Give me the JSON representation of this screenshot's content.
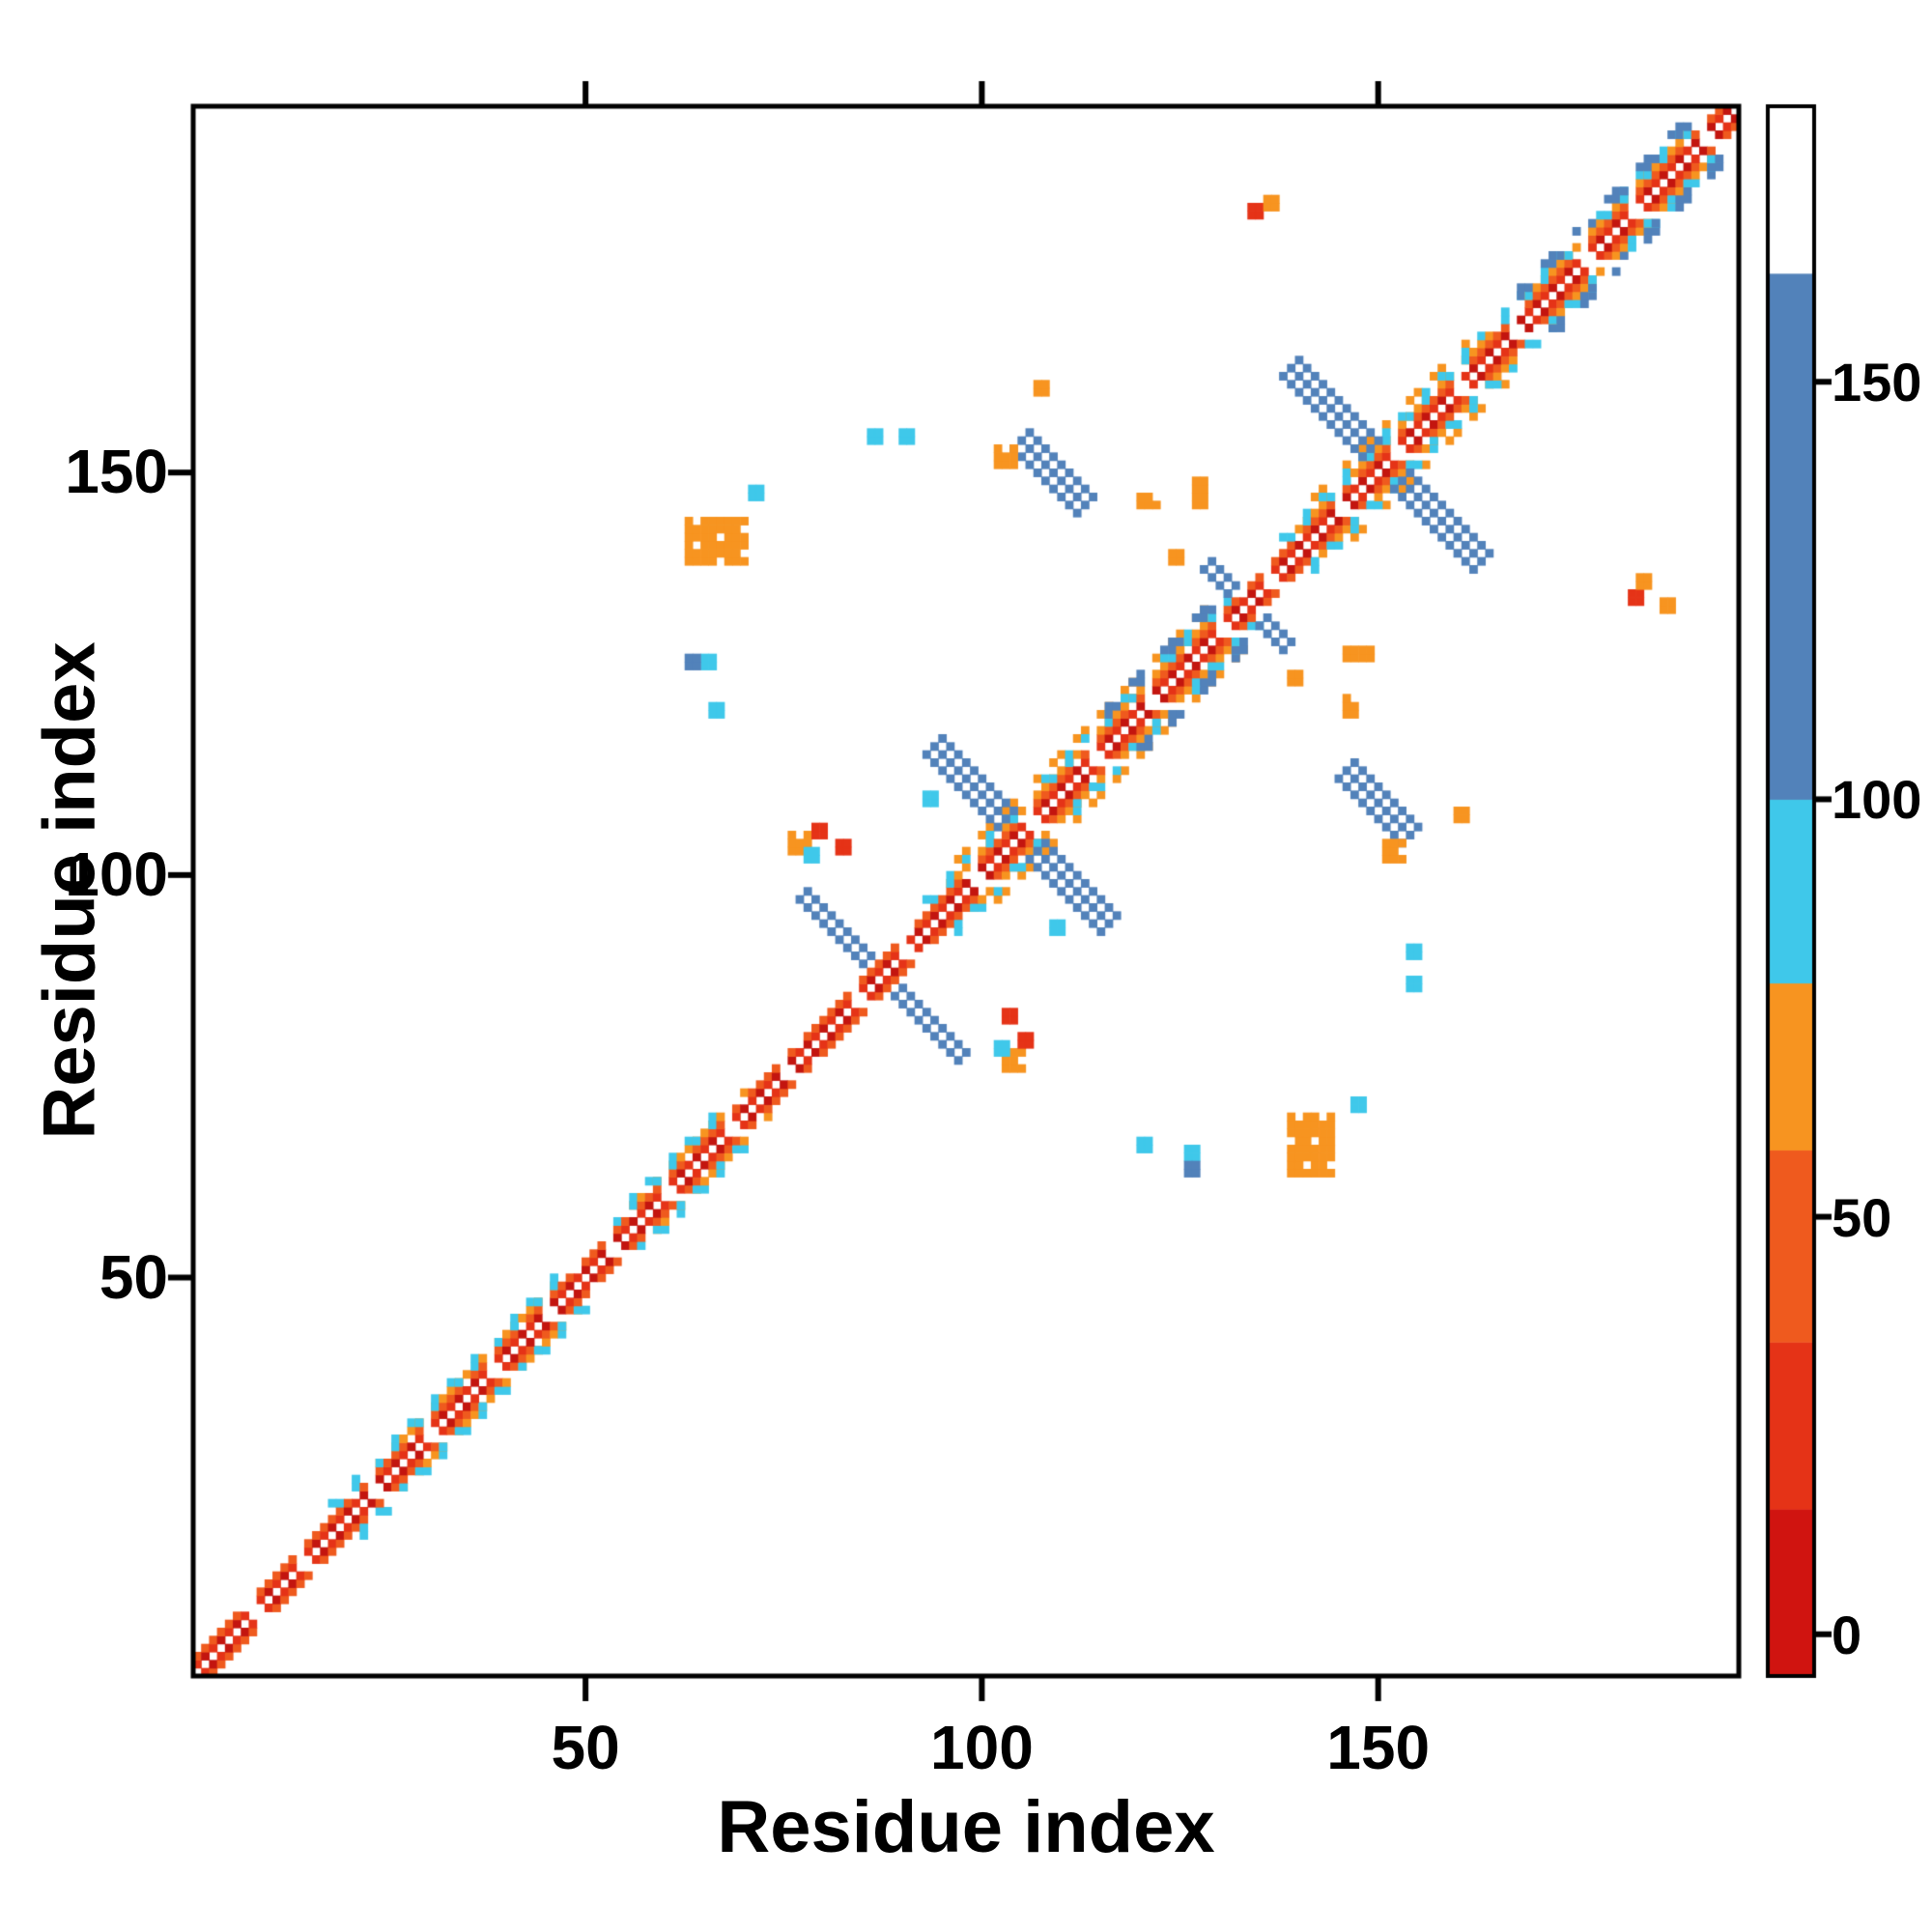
{
  "figure": {
    "background": "#ffffff",
    "border_color": "#000000"
  },
  "chart_data": {
    "type": "heatmap",
    "title": "",
    "xlabel": "Residue index",
    "ylabel": "Residue index",
    "x_range": [
      1,
      195
    ],
    "y_range": [
      1,
      195
    ],
    "x_ticks": [
      50,
      100,
      150
    ],
    "y_ticks": [
      50,
      100,
      150
    ],
    "grid": false,
    "legend_position": "none",
    "description": "Symmetric protein residue-residue contact map; colored cells mark contacts, color encodes the colorbar value scale (red ~0 through orange, cyan, blue ~150+, white above).",
    "palette": {
      "deep_red": "#c3150f",
      "red": "#e53317",
      "orange_red": "#ef5a1e",
      "orange": "#f79420",
      "cyan": "#3fc8ea",
      "blue": "#5282ba",
      "white": "#ffffff"
    },
    "colorbar": {
      "ticks": [
        0,
        50,
        100,
        150
      ],
      "vmin": -5,
      "vmax": 183,
      "stops": [
        {
          "from": -5,
          "to": 15,
          "color": "#d01410"
        },
        {
          "from": 15,
          "to": 35,
          "color": "#e53317"
        },
        {
          "from": 35,
          "to": 58,
          "color": "#ef5a1e"
        },
        {
          "from": 58,
          "to": 78,
          "color": "#f79420"
        },
        {
          "from": 78,
          "to": 100,
          "color": "#3fc8ea"
        },
        {
          "from": 100,
          "to": 163,
          "color": "#5282ba"
        },
        {
          "from": 163,
          "to": 183,
          "color": "#ffffff"
        }
      ]
    },
    "features": {
      "diagonal": {
        "start": 1,
        "end": 195,
        "breaks": [
          8,
          14,
          23,
          30,
          38,
          45,
          53,
          60,
          68,
          75,
          84,
          90,
          99,
          106,
          114,
          121,
          130,
          136,
          145,
          152,
          160,
          167,
          176,
          182,
          191
        ]
      },
      "outer_orange": [
        [
          24,
          46
        ],
        [
          56,
          70
        ],
        [
          96,
          130
        ],
        [
          140,
          164
        ],
        [
          168,
          190
        ]
      ],
      "orange_pair": [
        [
          97,
          130
        ],
        [
          141,
          161
        ]
      ],
      "cyan_flanks": [
        [
          18,
          46
        ],
        [
          52,
          66
        ],
        [
          93,
          131
        ],
        [
          135,
          163
        ],
        [
          166,
          191
        ]
      ],
      "blue_flanks": [
        [
          116,
          130
        ],
        [
          167,
          189
        ]
      ],
      "hairpins": [
        {
          "c0": 87,
          "a0": 2,
          "a1": 10,
          "t": 2
        },
        {
          "c0": 104,
          "a0": 2,
          "a1": 11,
          "t": 3
        },
        {
          "c0": 133,
          "a0": 2,
          "a1": 5,
          "t": 2
        },
        {
          "c0": 150,
          "a0": 2,
          "a1": 12,
          "t": 3
        }
      ],
      "streaks": [
        {
          "x0": 104,
          "y0": 153,
          "x1": 112,
          "y1": 145,
          "t": 3,
          "c": "blue",
          "m": true
        }
      ],
      "blobs": [
        {
          "x": 139,
          "y": 63,
          "w": 6,
          "h": 8,
          "c": "orange",
          "m": true
        },
        {
          "x": 120,
          "y": 146,
          "w": 3,
          "h": 2,
          "c": "orange",
          "m": true
        },
        {
          "x": 127,
          "y": 146,
          "w": 2,
          "h": 4,
          "c": "orange",
          "m": true
        },
        {
          "x": 151,
          "y": 102,
          "w": 3,
          "h": 3,
          "c": "orange",
          "m": true
        },
        {
          "x": 103,
          "y": 76,
          "w": 3,
          "h": 3,
          "c": "orange",
          "m": true
        }
      ],
      "dots": [
        {
          "x": 134,
          "y": 182,
          "c": "red",
          "m": true
        },
        {
          "x": 136,
          "y": 183,
          "c": "orange",
          "m": true
        },
        {
          "x": 186,
          "y": 133,
          "c": "orange",
          "m": false
        },
        {
          "x": 71,
          "y": 147,
          "c": "cyan",
          "m": true
        },
        {
          "x": 65,
          "y": 126,
          "c": "cyan",
          "m": true
        },
        {
          "x": 66,
          "y": 120,
          "c": "cyan",
          "m": true
        },
        {
          "x": 126,
          "y": 63,
          "c": "blue",
          "m": true
        },
        {
          "x": 78,
          "y": 102,
          "c": "cyan",
          "m": true
        },
        {
          "x": 82,
          "y": 103,
          "c": "red",
          "m": true
        },
        {
          "x": 154,
          "y": 86,
          "c": "cyan",
          "m": true
        },
        {
          "x": 154,
          "y": 90,
          "c": "cyan",
          "m": true
        },
        {
          "x": 105,
          "y": 79,
          "c": "red",
          "m": true
        },
        {
          "x": 93,
          "y": 109,
          "c": "cyan",
          "m": true
        },
        {
          "x": 124,
          "y": 139,
          "c": "orange",
          "m": true
        },
        {
          "x": 160,
          "y": 107,
          "c": "orange",
          "m": true
        }
      ]
    }
  }
}
